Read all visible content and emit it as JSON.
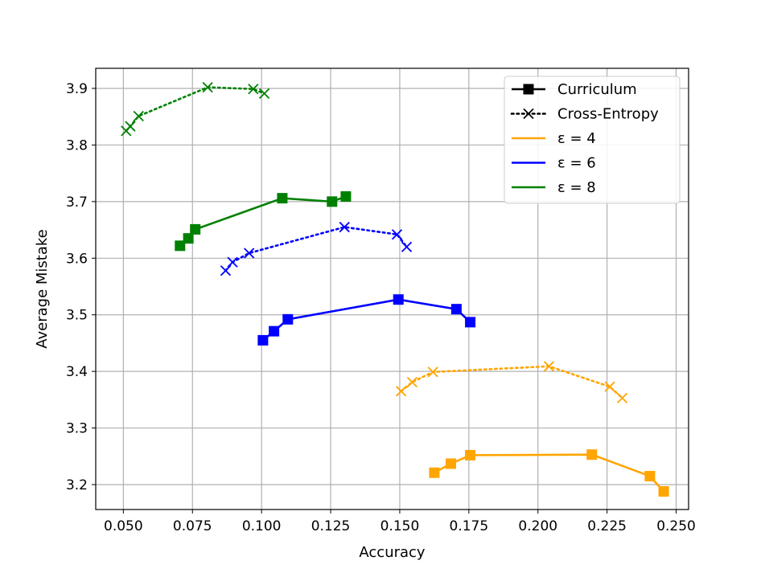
{
  "chart_data": {
    "type": "line",
    "xlabel": "Accuracy",
    "ylabel": "Average Mistake",
    "xlim": [
      0.04,
      0.2545
    ],
    "ylim": [
      3.156,
      3.9355
    ],
    "xticks": [
      0.05,
      0.075,
      0.1,
      0.125,
      0.15,
      0.175,
      0.2,
      0.225,
      0.25
    ],
    "xtick_labels": [
      "0.050",
      "0.075",
      "0.100",
      "0.125",
      "0.150",
      "0.175",
      "0.200",
      "0.225",
      "0.250"
    ],
    "yticks": [
      3.2,
      3.3,
      3.4,
      3.5,
      3.6,
      3.7,
      3.8,
      3.9
    ],
    "ytick_labels": [
      "3.2",
      "3.3",
      "3.4",
      "3.5",
      "3.6",
      "3.7",
      "3.8",
      "3.9"
    ],
    "grid": true,
    "legend_position": "top-right",
    "legend": [
      {
        "label": "Curriculum",
        "style": "solid",
        "marker": "square",
        "color": "#000000"
      },
      {
        "label": "Cross-Entropy",
        "style": "dotted",
        "marker": "x",
        "color": "#000000"
      },
      {
        "label": "ε = 4",
        "style": "solid",
        "marker": "none",
        "color": "#ffa500"
      },
      {
        "label": "ε = 6",
        "style": "solid",
        "marker": "none",
        "color": "#0000ff"
      },
      {
        "label": "ε = 8",
        "style": "solid",
        "marker": "none",
        "color": "#008000"
      }
    ],
    "series": [
      {
        "group": "ε = 4",
        "method": "Curriculum",
        "color": "#ffa500",
        "style": "solid",
        "marker": "square",
        "x": [
          0.1625,
          0.1685,
          0.1755,
          0.2195,
          0.2405,
          0.2455
        ],
        "y": [
          3.221,
          3.237,
          3.252,
          3.253,
          3.215,
          3.188
        ]
      },
      {
        "group": "ε = 4",
        "method": "Cross-Entropy",
        "color": "#ffa500",
        "style": "dotted",
        "marker": "x",
        "x": [
          0.1505,
          0.1545,
          0.162,
          0.204,
          0.226,
          0.2305
        ],
        "y": [
          3.365,
          3.381,
          3.399,
          3.409,
          3.373,
          3.353
        ]
      },
      {
        "group": "ε = 6",
        "method": "Curriculum",
        "color": "#0000ff",
        "style": "solid",
        "marker": "square",
        "x": [
          0.1005,
          0.1045,
          0.1095,
          0.1495,
          0.1705,
          0.1755
        ],
        "y": [
          3.455,
          3.471,
          3.492,
          3.527,
          3.51,
          3.487
        ]
      },
      {
        "group": "ε = 6",
        "method": "Cross-Entropy",
        "color": "#0000ff",
        "style": "dotted",
        "marker": "x",
        "x": [
          0.087,
          0.0895,
          0.0955,
          0.13,
          0.149,
          0.1525
        ],
        "y": [
          3.578,
          3.593,
          3.609,
          3.655,
          3.642,
          3.62
        ]
      },
      {
        "group": "ε = 8",
        "method": "Curriculum",
        "color": "#008000",
        "style": "solid",
        "marker": "square",
        "x": [
          0.0705,
          0.0735,
          0.076,
          0.1075,
          0.1255,
          0.1305
        ],
        "y": [
          3.622,
          3.635,
          3.651,
          3.706,
          3.7,
          3.709
        ]
      },
      {
        "group": "ε = 8",
        "method": "Cross-Entropy",
        "color": "#008000",
        "style": "dotted",
        "marker": "x",
        "x": [
          0.051,
          0.0525,
          0.0555,
          0.0805,
          0.097,
          0.101
        ],
        "y": [
          3.825,
          3.833,
          3.851,
          3.902,
          3.899,
          3.891
        ]
      }
    ]
  }
}
